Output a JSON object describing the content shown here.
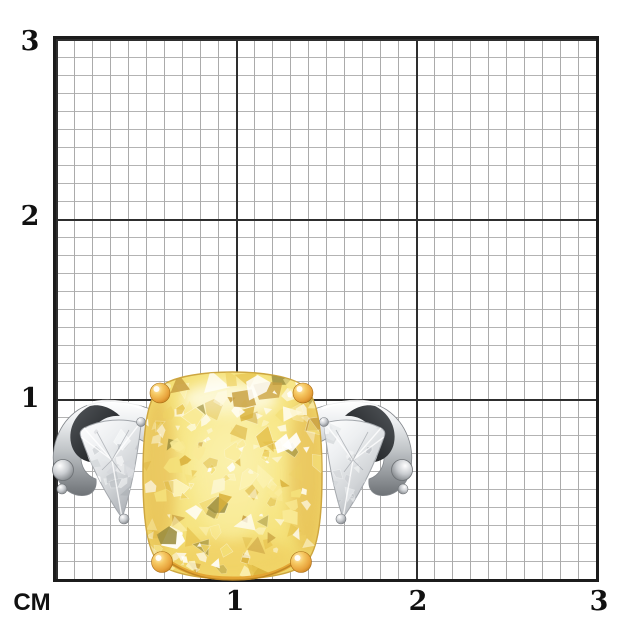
{
  "ruler": {
    "unit_label": "CM",
    "y_axis_labels": [
      "3",
      "2",
      "1"
    ],
    "x_axis_labels": [
      "1",
      "2",
      "3"
    ]
  },
  "grid": {
    "cm_span": 3,
    "minor_cells_per_cm": 10,
    "major_line_color": "#2e2e2e",
    "minor_line_color": "#b0b0b0",
    "background_color": "#ffffff"
  },
  "ring": {
    "center_stone_color": "#f4e07a",
    "side_stone_color": "#e7eaec",
    "band_color": "#c6c9cd",
    "prong_color": "#e8a73e"
  }
}
